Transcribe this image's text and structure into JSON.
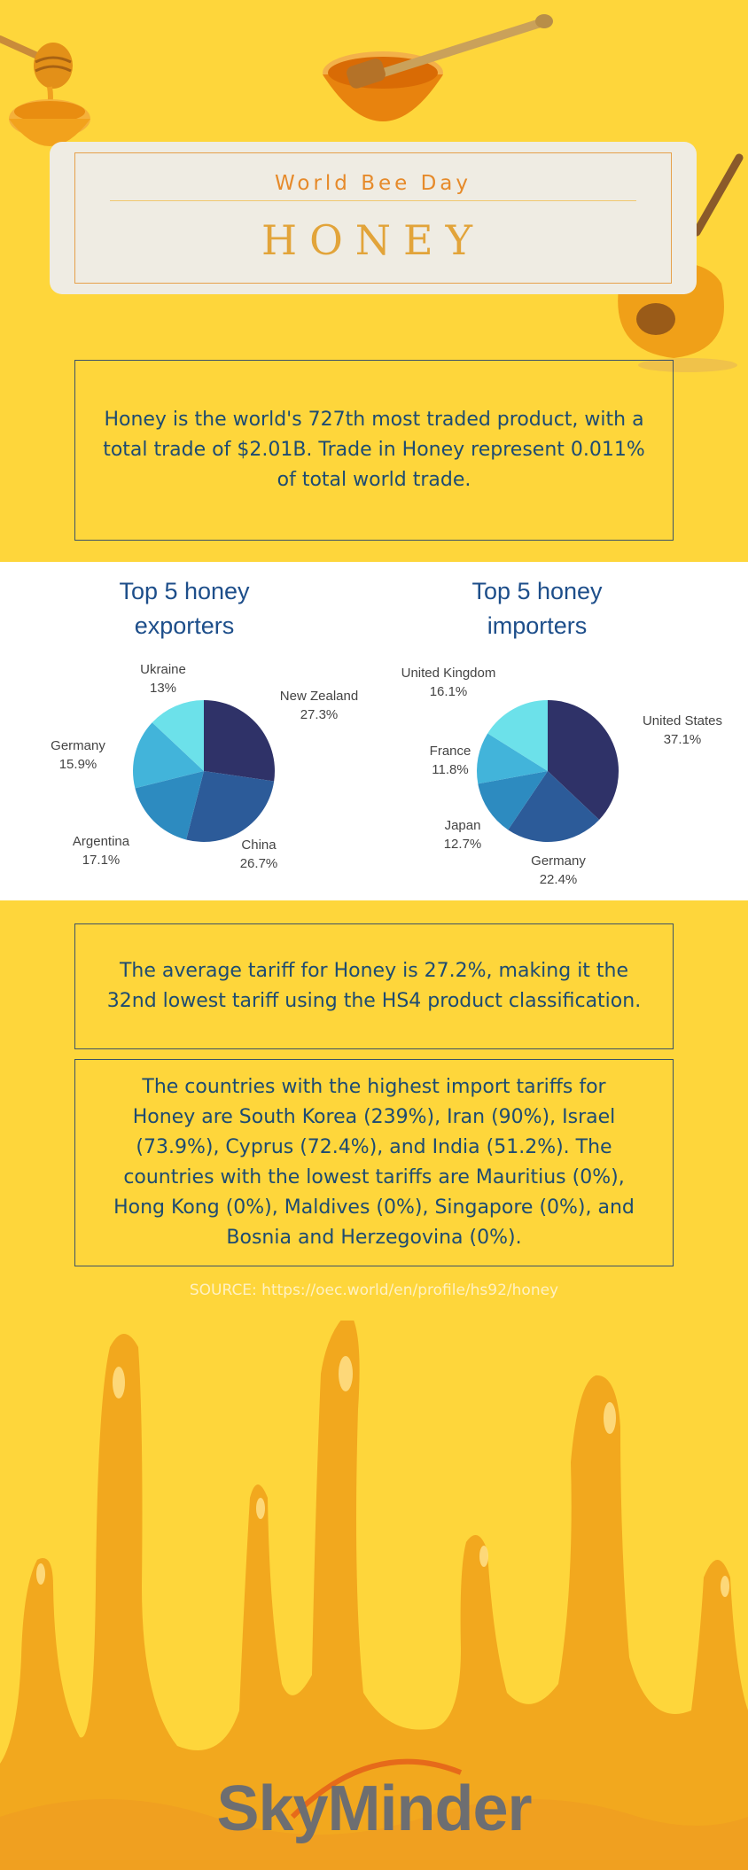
{
  "header": {
    "subtitle": "World Bee Day",
    "title": "HONEY"
  },
  "intro_text": "Honey is the world's 727th most traded product, with a total trade of $2.01B. Trade in Honey represent 0.011% of total world trade.",
  "tariff_text": "The average tariff for Honey is 27.2%, making it the 32nd lowest tariff using the HS4 product classification.",
  "highest_text": "The countries with the highest import tariffs for Honey are South Korea (239%), Iran (90%), Israel (73.9%), Cyprus (72.4%), and India (51.2%). The countries with the lowest tariffs are Mauritius (0%), Hong Kong (0%), Maldives (0%), Singapore (0%), and Bosnia and Herzegovina (0%).",
  "source": "SOURCE: https://oec.world/en/profile/hs92/honey",
  "brand": "SkyMinder",
  "colors": {
    "background": "#fed63b",
    "honey_dark": "#f2a81e",
    "text_blue": "#1d4b72"
  },
  "chart_data": [
    {
      "type": "pie",
      "title": [
        "Top 5 honey",
        "exporters"
      ],
      "slices": [
        {
          "label": "New Zealand",
          "value": 27.3,
          "display": "27.3%",
          "color": "#2f3268"
        },
        {
          "label": "China",
          "value": 26.7,
          "display": "26.7%",
          "color": "#2c5b99"
        },
        {
          "label": "Argentina",
          "value": 17.1,
          "display": "17.1%",
          "color": "#2d8bc0"
        },
        {
          "label": "Germany",
          "value": 15.9,
          "display": "15.9%",
          "color": "#42b4da"
        },
        {
          "label": "Ukraine",
          "value": 13,
          "display": "13%",
          "color": "#6ce1ea"
        }
      ]
    },
    {
      "type": "pie",
      "title": [
        "Top 5 honey",
        "importers"
      ],
      "slices": [
        {
          "label": "United States",
          "value": 37.1,
          "display": "37.1%",
          "color": "#2f3268"
        },
        {
          "label": "Germany",
          "value": 22.4,
          "display": "22.4%",
          "color": "#2c5b99"
        },
        {
          "label": "Japan",
          "value": 12.7,
          "display": "12.7%",
          "color": "#2d8bc0"
        },
        {
          "label": "France",
          "value": 11.8,
          "display": "11.8%",
          "color": "#42b4da"
        },
        {
          "label": "United Kingdom",
          "value": 16.1,
          "display": "16.1%",
          "color": "#6ce1ea"
        }
      ]
    }
  ]
}
